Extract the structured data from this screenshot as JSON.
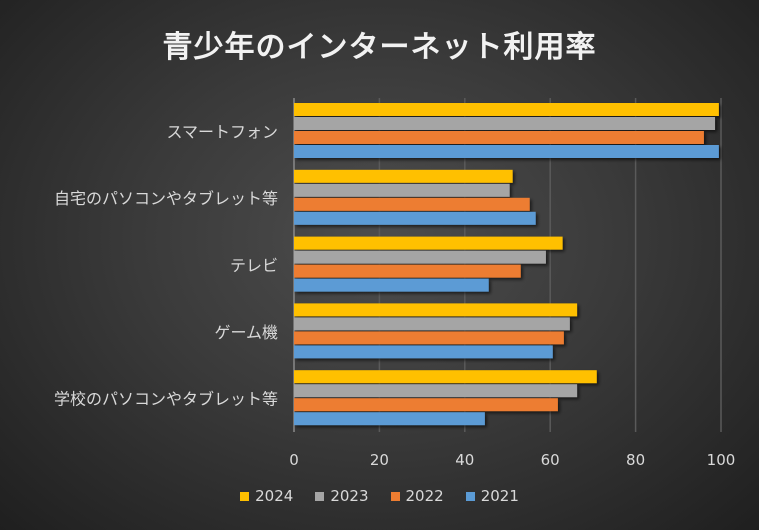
{
  "chart_data": {
    "type": "bar",
    "orientation": "horizontal",
    "title": "青少年のインターネット利用率",
    "categories": [
      "スマートフォン",
      "自宅のパソコンやタブレット等",
      "テレビ",
      "ゲーム機",
      "学校のパソコンやタブレット等"
    ],
    "series": [
      {
        "name": "2024",
        "color": "#FFC000",
        "values": [
          99.5,
          51.2,
          62.9,
          66.3,
          70.9
        ]
      },
      {
        "name": "2023",
        "color": "#A5A5A5",
        "values": [
          98.6,
          50.5,
          59.0,
          64.6,
          66.3
        ]
      },
      {
        "name": "2022",
        "color": "#ED7D31",
        "values": [
          96.0,
          55.2,
          53.1,
          63.2,
          61.8
        ]
      },
      {
        "name": "2021",
        "color": "#5B9BD5",
        "values": [
          99.5,
          56.6,
          45.6,
          60.6,
          44.7
        ]
      }
    ],
    "xlim": [
      0,
      100
    ],
    "xticks": [
      "0",
      "20",
      "40",
      "60",
      "80",
      "100"
    ],
    "grid": true,
    "legend_position": "bottom",
    "xlabel": "",
    "ylabel": ""
  }
}
